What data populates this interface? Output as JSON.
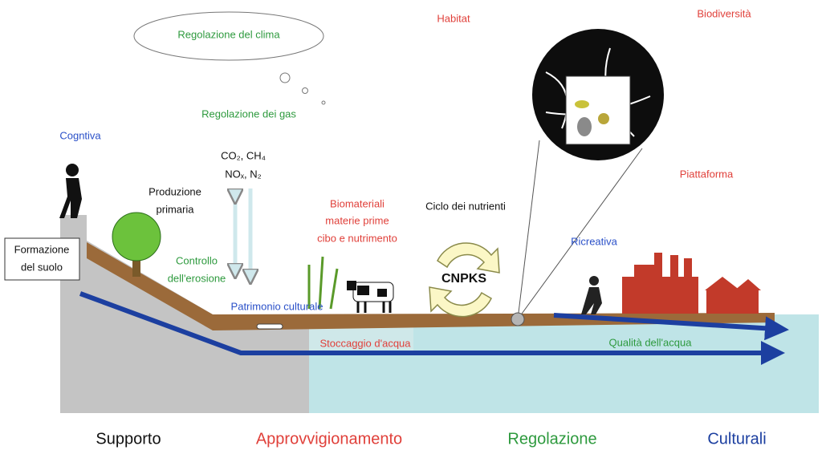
{
  "labels": {
    "climate": "Regolazione del clima",
    "habitat": "Habitat",
    "biodiversity": "Biodiversità",
    "gas": "Regolazione dei gas",
    "cognitive": "Cogntiva",
    "gases": [
      "CO₂, CH₄",
      "NOₓ, N₂"
    ],
    "primary_production": [
      "Produzione",
      "primaria"
    ],
    "soil_formation": [
      "Formazione",
      "del suolo"
    ],
    "erosion": [
      "Controllo",
      "dell'erosione"
    ],
    "biomaterials": [
      "Biomateriali",
      "materie prime",
      "cibo e nutrimento"
    ],
    "nutrient_cycle": "Ciclo dei nutrienti",
    "cnpks": "CNPKS",
    "platform": "Piattaforma",
    "recreation": "Ricreativa",
    "heritage": "Patrimonio culturale",
    "water_storage": "Stoccaggio d'acqua",
    "water_quality": "Qualità dell'acqua"
  },
  "categories": [
    "Supporto",
    "Approvvigionamento",
    "Regolazione",
    "Culturali"
  ]
}
